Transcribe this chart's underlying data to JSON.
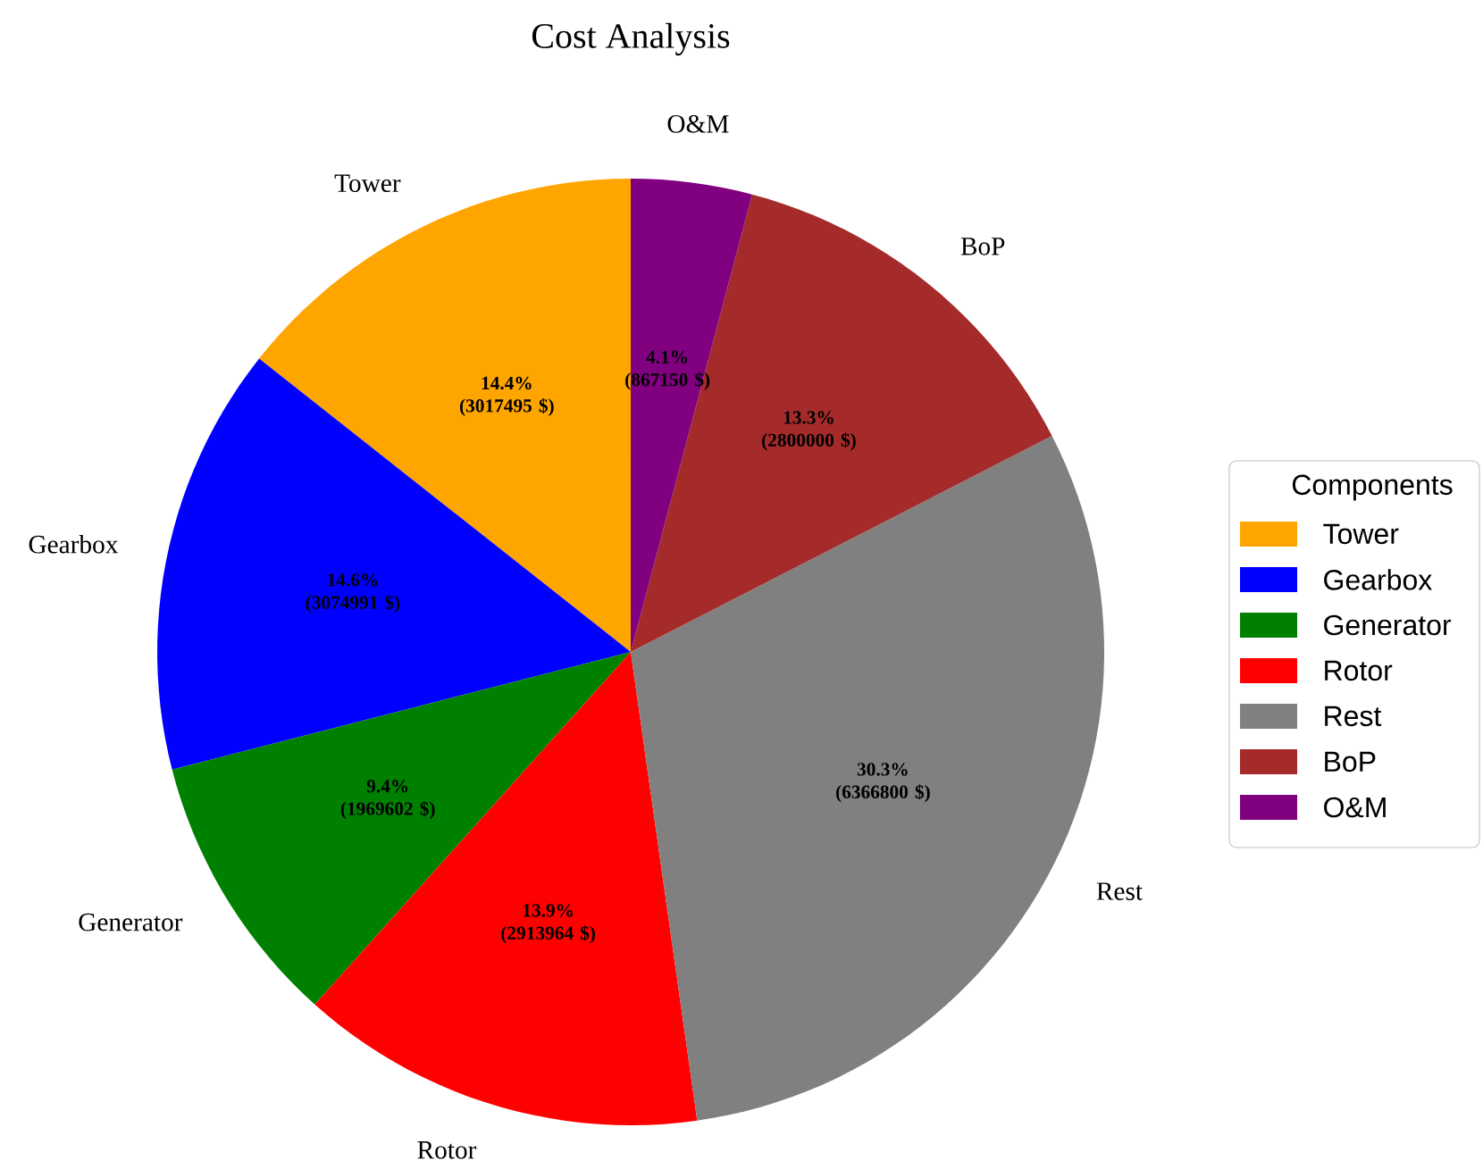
{
  "chart_data": {
    "type": "pie",
    "title": "Cost Analysis",
    "categories": [
      "Tower",
      "Gearbox",
      "Generator",
      "Rotor",
      "Rest",
      "BoP",
      "O&M"
    ],
    "values": [
      3017495,
      3074991,
      1969602,
      2913964,
      6366800,
      2800000,
      867150
    ],
    "colors": [
      "#ffa500",
      "#0000ff",
      "#008000",
      "#ff0000",
      "#808080",
      "#a52a2a",
      "#800080"
    ],
    "value_labels": [
      "14.4% (3017495 $)",
      "14.6% (3074991 $)",
      "9.4% (1969602 $)",
      "13.9% (2913964 $)",
      "30.3% (6366800 $)",
      "13.3% (2800000 $)",
      "4.1% (867150 $)"
    ],
    "legend": "right",
    "legend_title": "Components"
  }
}
